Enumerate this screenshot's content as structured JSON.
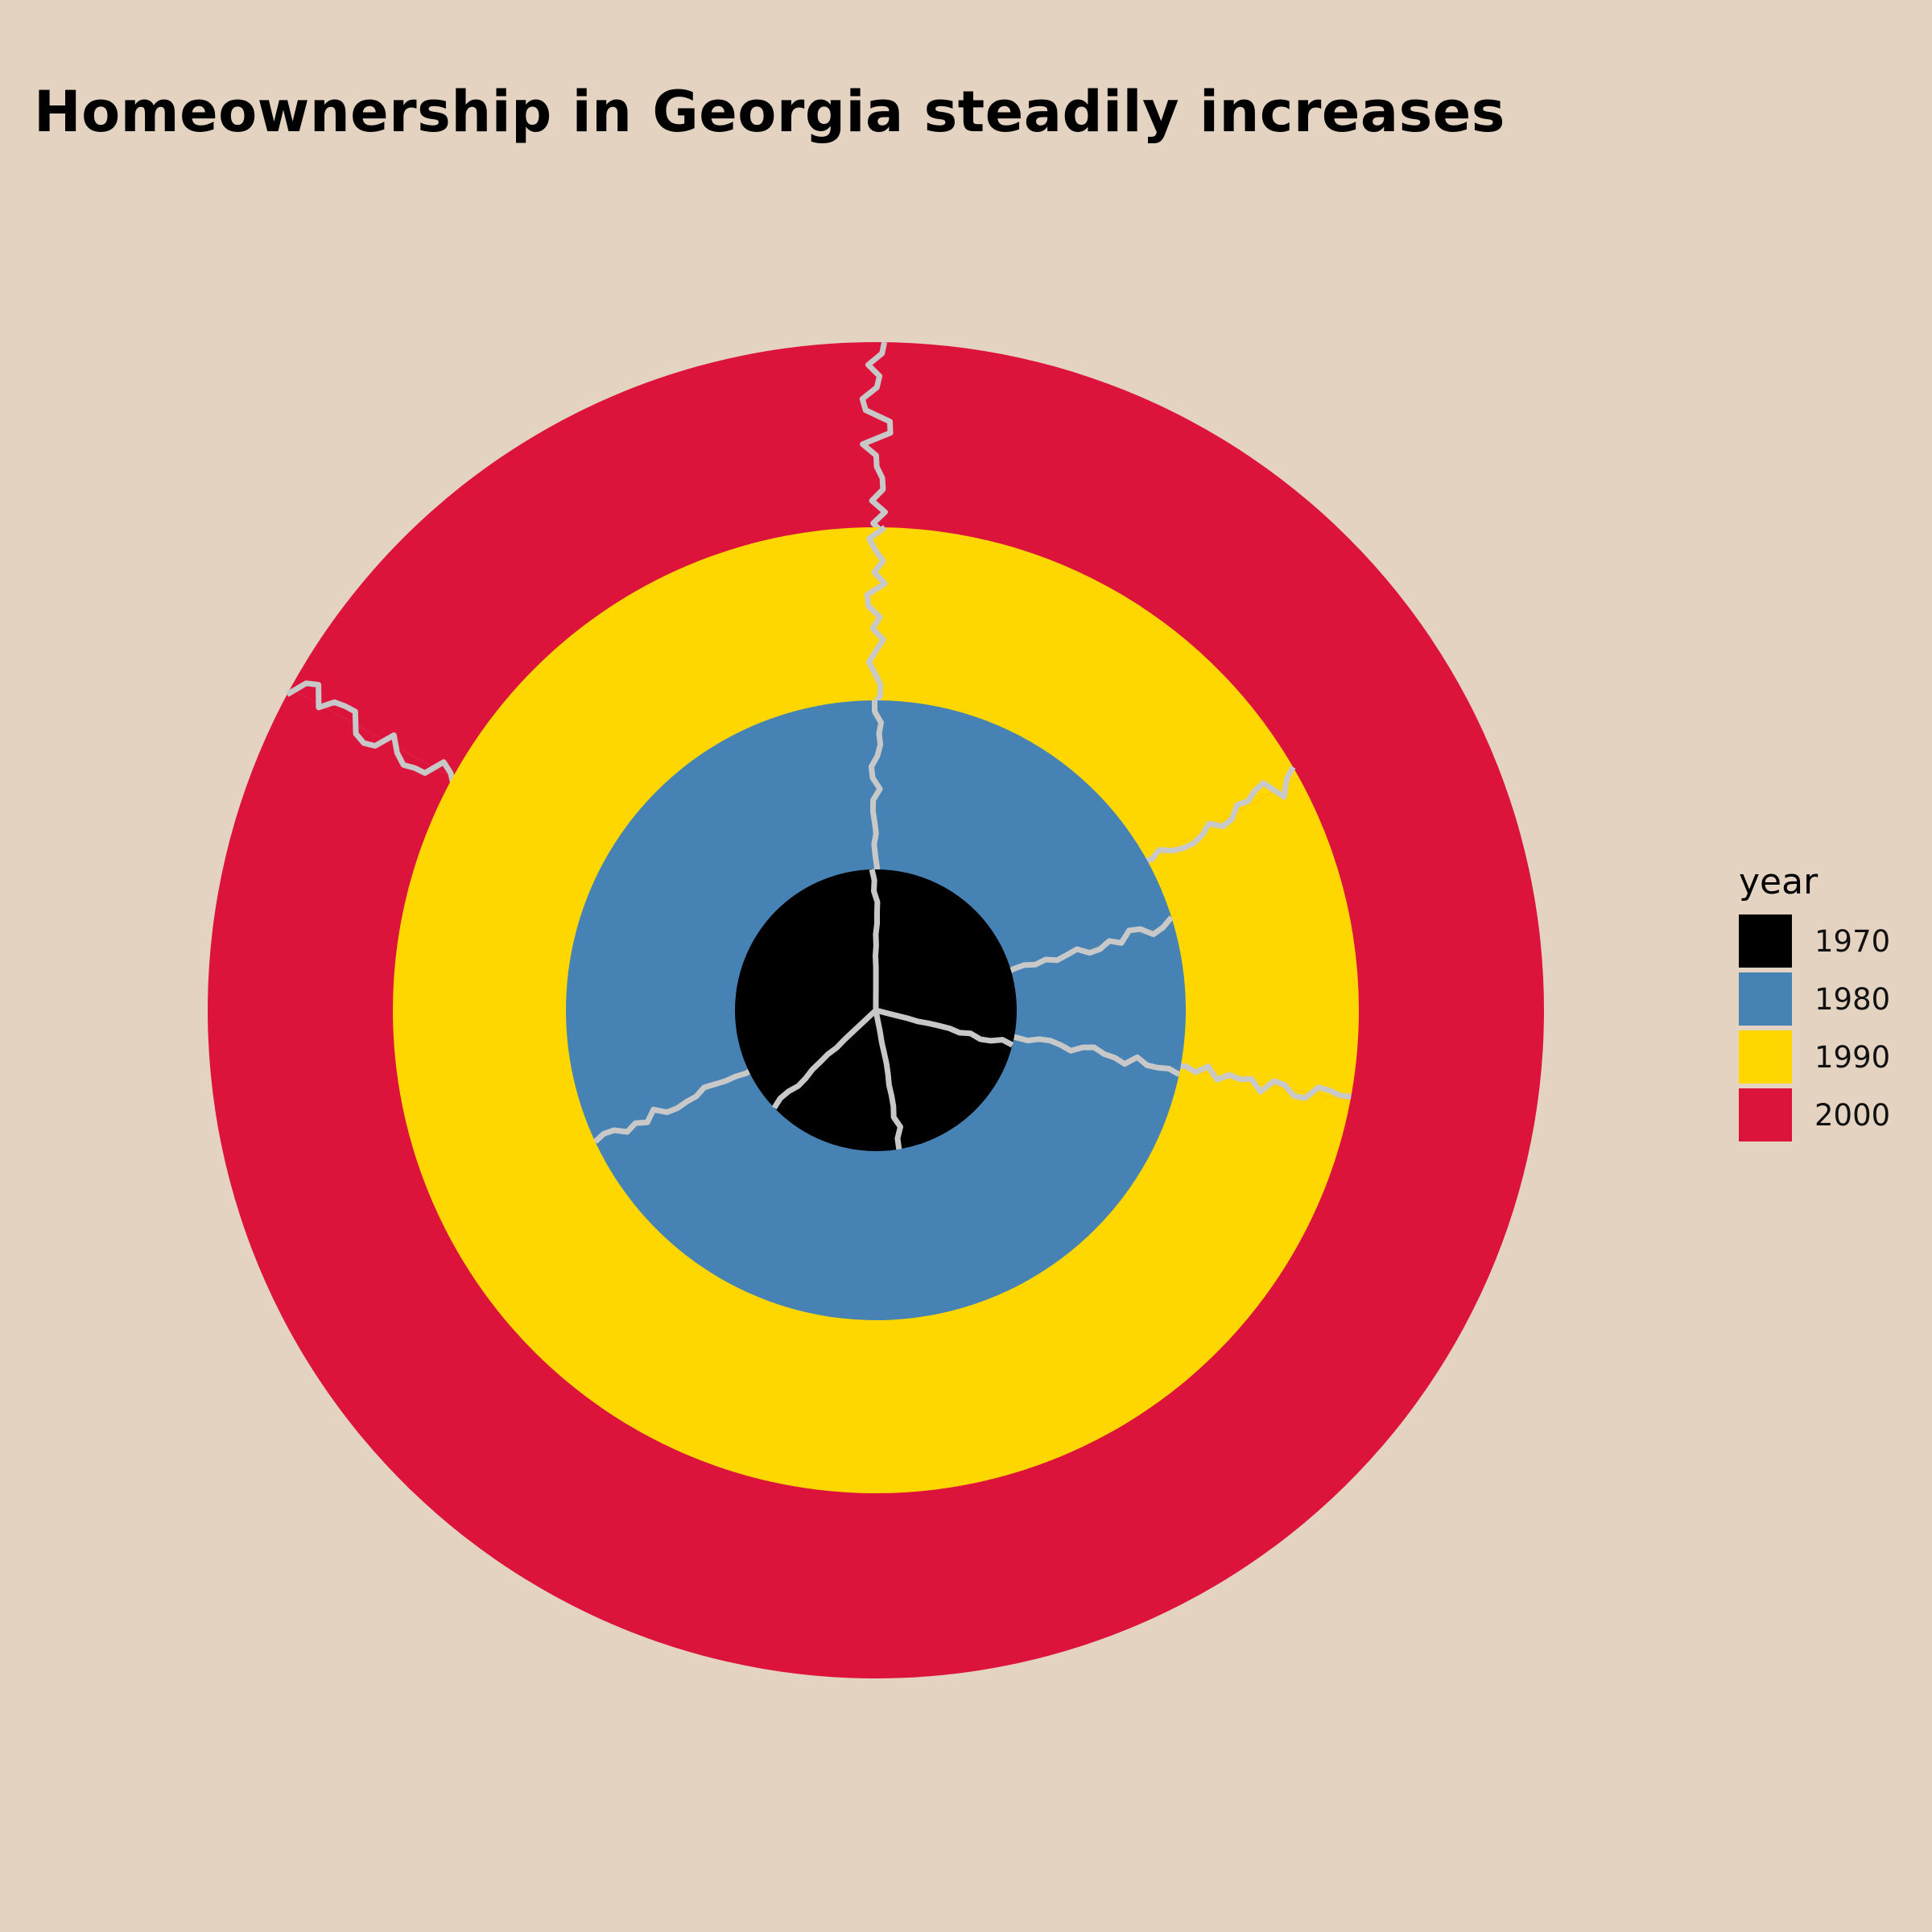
{
  "chart_data": {
    "type": "pie",
    "title": "Homeownership in Georgia steadily increases",
    "legend": {
      "title": "year",
      "placement": "right",
      "entries": [
        {
          "label": "1970",
          "color": "#000000"
        },
        {
          "label": "1980",
          "color": "#4682b4"
        },
        {
          "label": "1990",
          "color": "#ffd700"
        },
        {
          "label": "2000",
          "color": "#dc143c"
        }
      ]
    },
    "series": [
      {
        "name": "1970",
        "values": [
          0.29,
          0.18,
          0.16,
          0.37
        ]
      },
      {
        "name": "1980",
        "values": [
          0.205,
          0.075,
          0.4,
          0.32
        ]
      },
      {
        "name": "1990",
        "values": [
          0.17,
          0.11,
          0.72
        ]
      },
      {
        "name": "2000",
        "values": [
          0.83,
          0.17
        ]
      }
    ],
    "colors": {
      "1970": "#000000",
      "1980": "#4682b4",
      "1990": "#ffd700",
      "2000": "#dc143c"
    },
    "divider_color": "#c8c8c8",
    "background": "#e3d3c0"
  }
}
